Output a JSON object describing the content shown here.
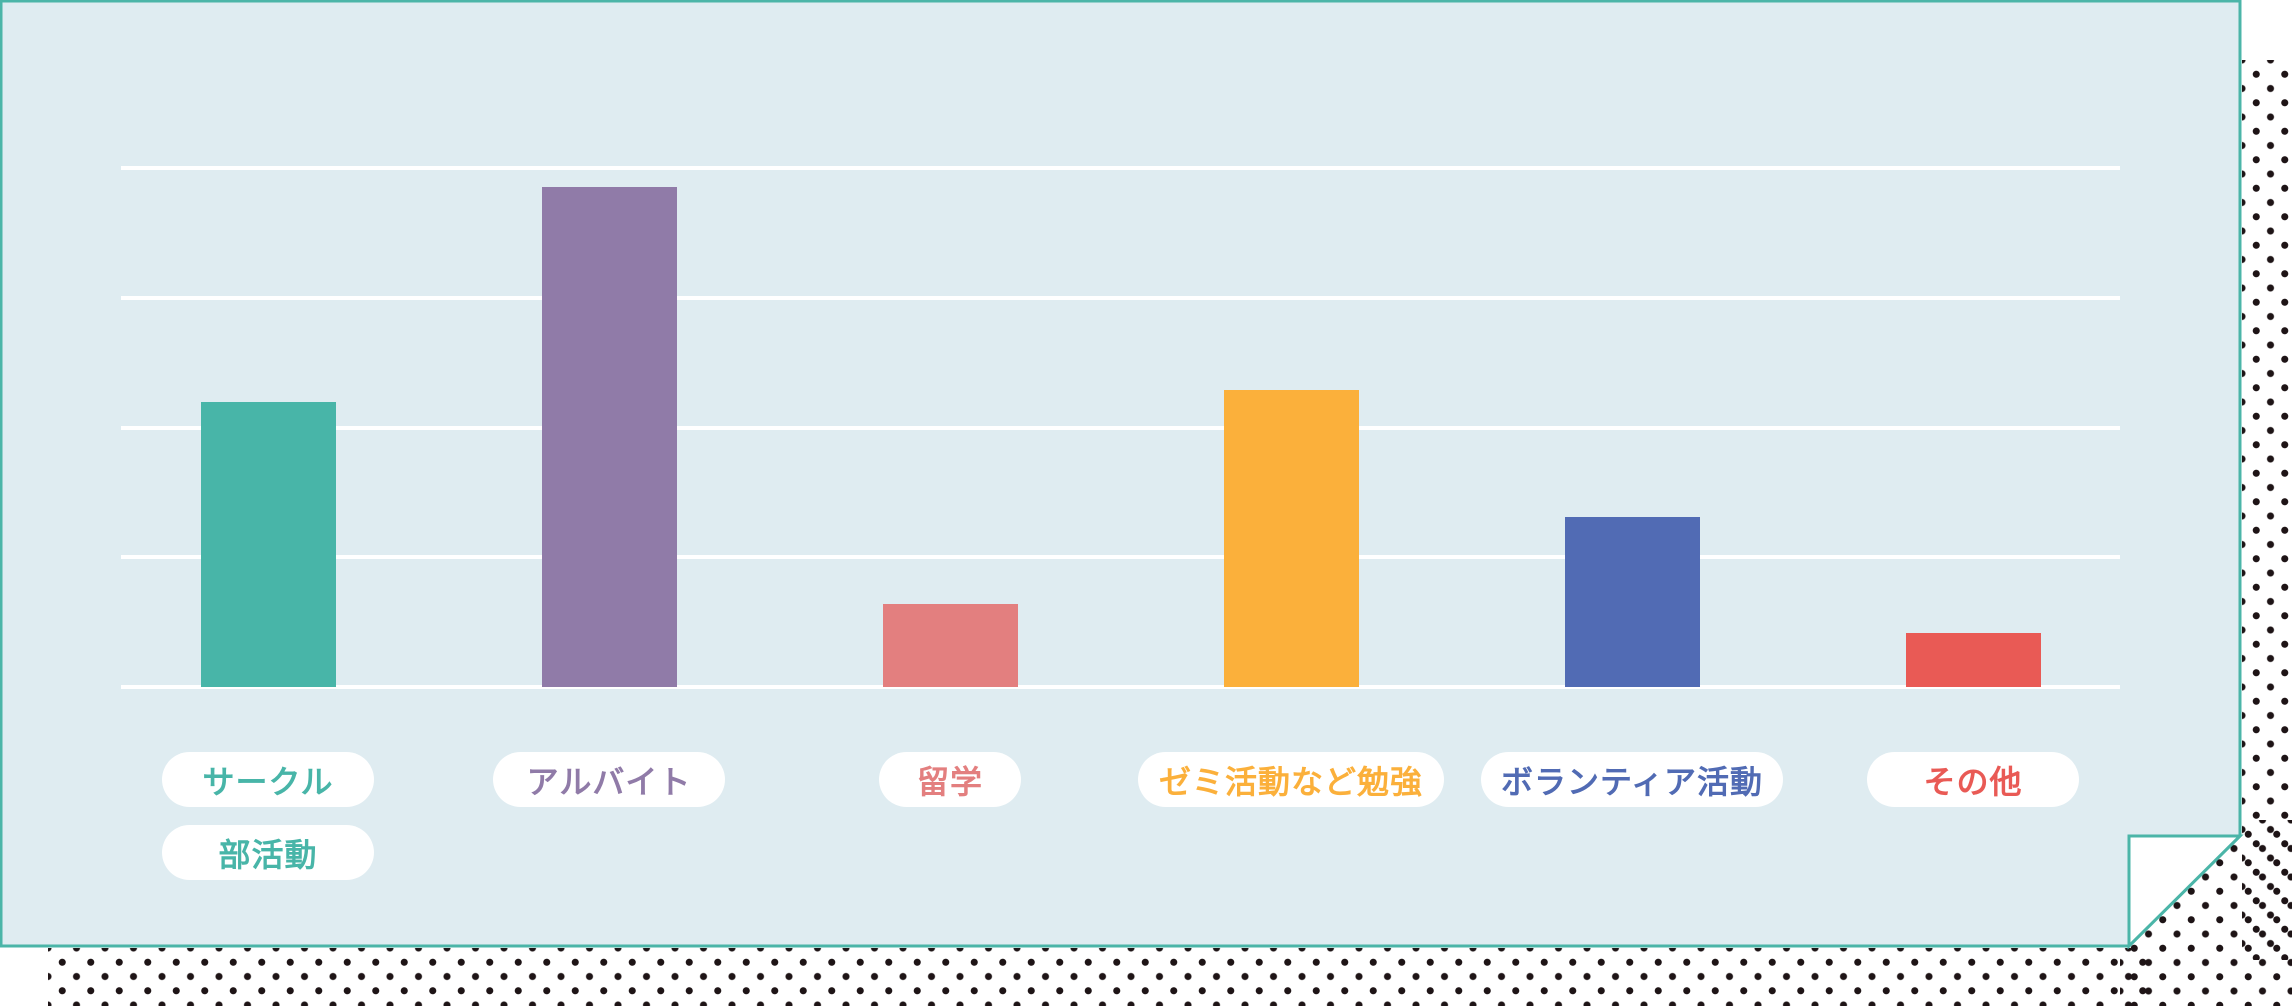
{
  "colors": {
    "panel_bg": "#dfecf1",
    "panel_border": "#4bb5a8",
    "gridline": "#ffffff",
    "dots": "#1e1416"
  },
  "chart_data": {
    "type": "bar",
    "title": "",
    "xlabel": "",
    "ylabel": "",
    "ylim": [
      0,
      4
    ],
    "grid": true,
    "gridlines": 5,
    "legend": "none",
    "categories": [
      "サークル 部活動",
      "アルバイト",
      "留学",
      "ゼミ活動など勉強",
      "ボランティア活動",
      "その他"
    ],
    "values": [
      2.2,
      3.85,
      0.64,
      2.29,
      1.31,
      0.42
    ],
    "value_units": "gridline intervals (no numeric axis shown)",
    "bars": [
      {
        "label_lines": [
          "サークル",
          "部活動"
        ],
        "value": 2.2,
        "color": "#48b5a8"
      },
      {
        "label_lines": [
          "アルバイト"
        ],
        "value": 3.85,
        "color": "#907ba8"
      },
      {
        "label_lines": [
          "留学"
        ],
        "value": 0.64,
        "color": "#e37f7f"
      },
      {
        "label_lines": [
          "ゼミ活動など勉強"
        ],
        "value": 2.29,
        "color": "#fbb03b"
      },
      {
        "label_lines": [
          "ボランティア活動"
        ],
        "value": 1.31,
        "color": "#516bb4"
      },
      {
        "label_lines": [
          "その他"
        ],
        "value": 0.42,
        "color": "#e95a55"
      }
    ]
  }
}
